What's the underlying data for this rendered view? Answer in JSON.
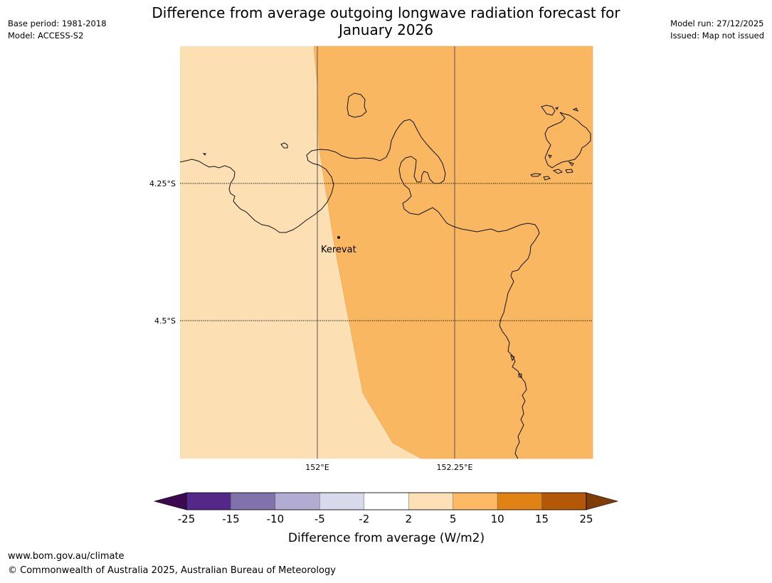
{
  "header": {
    "base_period": "Base period: 1981-2018",
    "model": "Model: ACCESS-S2",
    "model_run": "Model run: 27/12/2025",
    "issued": "Issued: Map not issued",
    "title_line1": "Difference from average outgoing longwave radiation forecast for",
    "title_line2": "January 2026"
  },
  "map": {
    "place_label": "Kerevat",
    "lat_labels": [
      "4.25°S",
      "4.5°S"
    ],
    "lon_labels": [
      "152°E",
      "152.25°E"
    ],
    "colors": {
      "category_2_5": "#fddfb4",
      "category_5_10": "#fab762",
      "coastline": "#111111",
      "gridline": "#555555"
    }
  },
  "legend": {
    "title": "Difference from average (W/m2)",
    "tick_labels": [
      "-25",
      "-15",
      "-10",
      "-5",
      "-2",
      "2",
      "5",
      "10",
      "15",
      "25"
    ],
    "bins": [
      {
        "range": "< -25",
        "color": "#3b0a4f"
      },
      {
        "range": "-25 to -15",
        "color": "#542889"
      },
      {
        "range": "-15 to -10",
        "color": "#8073ac"
      },
      {
        "range": "-10 to -5",
        "color": "#b2abd2"
      },
      {
        "range": "-5 to -2",
        "color": "#d8daeb"
      },
      {
        "range": "-2 to 2",
        "color": "#ffffff"
      },
      {
        "range": "2 to 5",
        "color": "#fee0b6"
      },
      {
        "range": "5 to 10",
        "color": "#fdb863"
      },
      {
        "range": "10 to 15",
        "color": "#e08214"
      },
      {
        "range": "15 to 25",
        "color": "#b35806"
      },
      {
        "range": "> 25",
        "color": "#7f3b08"
      }
    ]
  },
  "footer": {
    "website": "www.bom.gov.au/climate",
    "copyright": "© Commonwealth of Australia 2025, Australian Bureau of Meteorology"
  }
}
